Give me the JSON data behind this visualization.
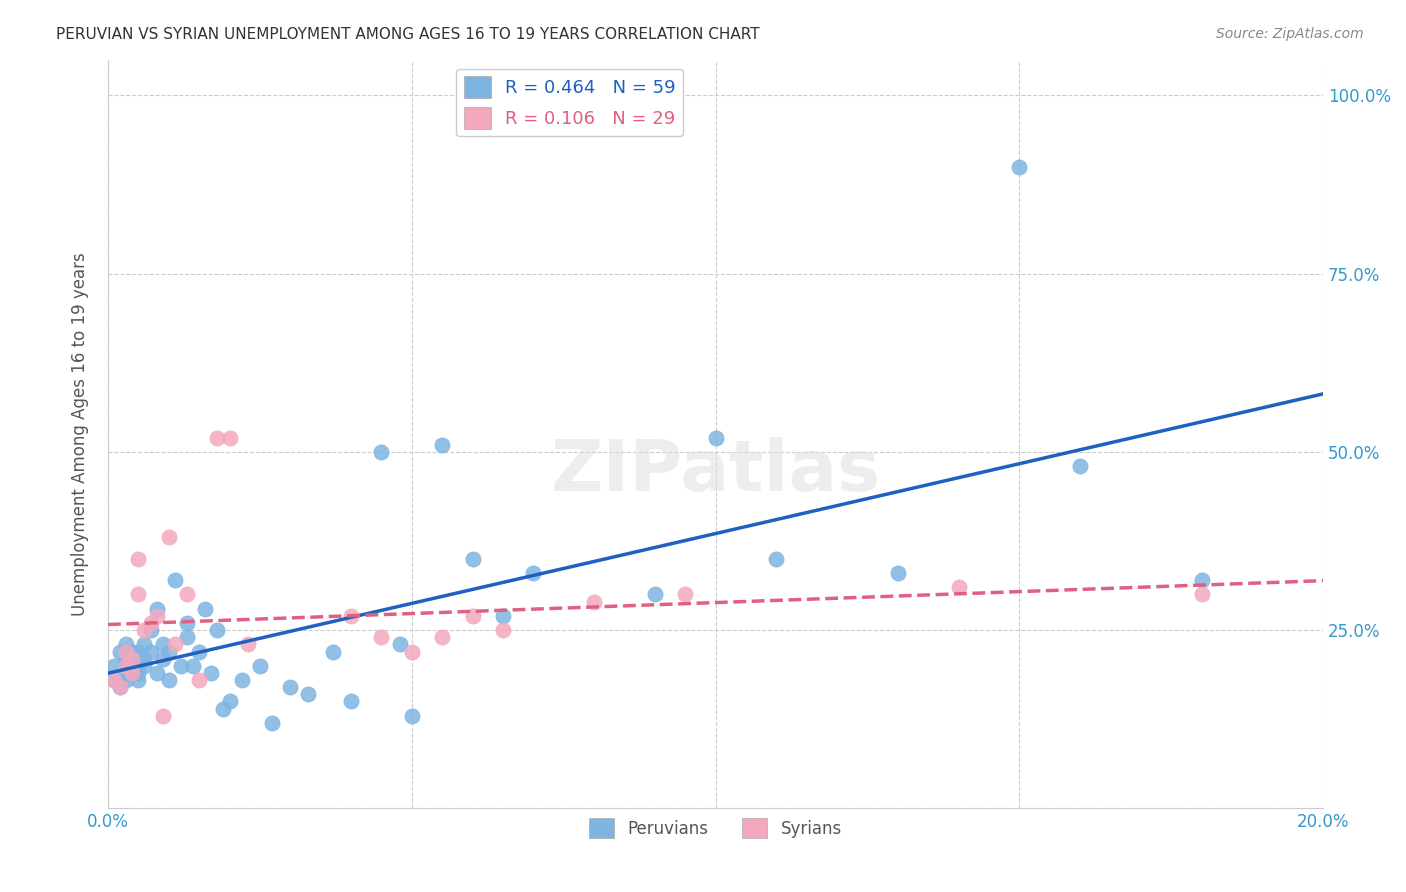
{
  "title": "PERUVIAN VS SYRIAN UNEMPLOYMENT AMONG AGES 16 TO 19 YEARS CORRELATION CHART",
  "source": "Source: ZipAtlas.com",
  "xlabel_bottom": "",
  "ylabel": "Unemployment Among Ages 16 to 19 years",
  "x_min": 0.0,
  "x_max": 0.2,
  "y_min": 0.0,
  "y_max": 1.05,
  "x_ticks": [
    0.0,
    0.05,
    0.1,
    0.15,
    0.2
  ],
  "x_tick_labels": [
    "0.0%",
    "",
    "",
    "",
    "20.0%"
  ],
  "y_ticks": [
    0.0,
    0.25,
    0.5,
    0.75,
    1.0
  ],
  "y_tick_labels": [
    "",
    "25.0%",
    "50.0%",
    "75.0%",
    "100.0%"
  ],
  "peruvian_color": "#7EB4E2",
  "syrian_color": "#F4A8BE",
  "peruvian_line_color": "#2060C0",
  "syrian_line_color": "#E06080",
  "watermark": "ZIPatlas",
  "legend_R_peru": "R = 0.464",
  "legend_N_peru": "N = 59",
  "legend_R_syria": "R = 0.106",
  "legend_N_syria": "N = 29",
  "legend_label_peru": "Peruvians",
  "legend_label_syria": "Syrians",
  "peruvian_x": [
    0.001,
    0.001,
    0.002,
    0.002,
    0.003,
    0.003,
    0.003,
    0.003,
    0.004,
    0.004,
    0.004,
    0.004,
    0.005,
    0.005,
    0.005,
    0.005,
    0.006,
    0.006,
    0.006,
    0.007,
    0.007,
    0.008,
    0.008,
    0.009,
    0.009,
    0.01,
    0.01,
    0.011,
    0.012,
    0.013,
    0.013,
    0.014,
    0.015,
    0.016,
    0.017,
    0.018,
    0.019,
    0.02,
    0.022,
    0.025,
    0.027,
    0.03,
    0.033,
    0.037,
    0.04,
    0.045,
    0.048,
    0.05,
    0.055,
    0.06,
    0.065,
    0.07,
    0.09,
    0.1,
    0.11,
    0.13,
    0.15,
    0.16,
    0.18
  ],
  "peruvian_y": [
    0.18,
    0.2,
    0.17,
    0.22,
    0.19,
    0.21,
    0.23,
    0.18,
    0.2,
    0.22,
    0.19,
    0.21,
    0.18,
    0.2,
    0.22,
    0.19,
    0.21,
    0.23,
    0.2,
    0.22,
    0.25,
    0.19,
    0.28,
    0.21,
    0.23,
    0.18,
    0.22,
    0.32,
    0.2,
    0.26,
    0.24,
    0.2,
    0.22,
    0.28,
    0.19,
    0.25,
    0.14,
    0.15,
    0.18,
    0.2,
    0.12,
    0.17,
    0.16,
    0.22,
    0.15,
    0.5,
    0.23,
    0.13,
    0.51,
    0.35,
    0.27,
    0.33,
    0.3,
    0.52,
    0.35,
    0.33,
    0.9,
    0.48,
    0.32
  ],
  "syrian_x": [
    0.001,
    0.002,
    0.003,
    0.003,
    0.004,
    0.004,
    0.005,
    0.005,
    0.006,
    0.007,
    0.008,
    0.009,
    0.01,
    0.011,
    0.013,
    0.015,
    0.018,
    0.02,
    0.023,
    0.04,
    0.045,
    0.05,
    0.055,
    0.06,
    0.065,
    0.08,
    0.095,
    0.14,
    0.18
  ],
  "syrian_y": [
    0.18,
    0.17,
    0.2,
    0.22,
    0.19,
    0.21,
    0.3,
    0.35,
    0.25,
    0.26,
    0.27,
    0.13,
    0.38,
    0.23,
    0.3,
    0.18,
    0.52,
    0.52,
    0.23,
    0.27,
    0.24,
    0.22,
    0.24,
    0.27,
    0.25,
    0.29,
    0.3,
    0.31,
    0.3
  ],
  "background_color": "#FFFFFF",
  "grid_color": "#CCCCCC"
}
